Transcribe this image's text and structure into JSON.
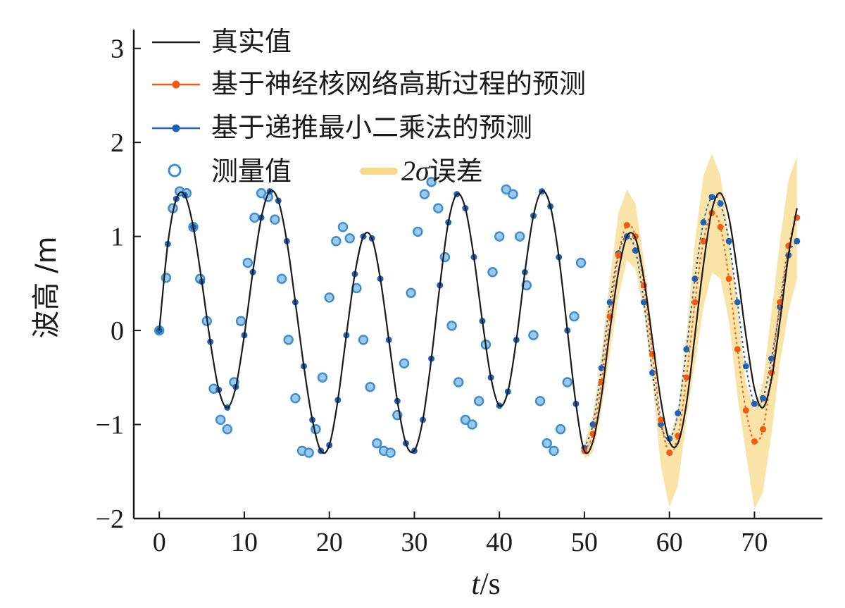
{
  "chart_data": {
    "type": "line",
    "xlabel_italic": "t",
    "xlabel_unit": "/s",
    "ylabel": "波高 /m",
    "xlim": [
      -3,
      78
    ],
    "ylim": [
      -2,
      3.2
    ],
    "xticks": [
      0,
      10,
      20,
      30,
      40,
      50,
      60,
      70
    ],
    "yticks": [
      -2,
      -1,
      0,
      1,
      2,
      3
    ],
    "legend_position": "top-left",
    "grid": false,
    "colors": {
      "true": "#1a1a1a",
      "gp": "#f05a14",
      "rls": "#1f62b4",
      "measured": "#3f8fcf",
      "band": "#f8d98a"
    },
    "legend": {
      "true": "真实值",
      "gp": "基于神经核网络高斯过程的预测",
      "rls": "基于递推最小二乘法的预测",
      "measured": "测量值",
      "band_sigma": "2σ",
      "band_text": "误差"
    },
    "series": [
      {
        "name": "真实值",
        "x": [
          0,
          1,
          2,
          3,
          4,
          5,
          6,
          7,
          8,
          9,
          10,
          11,
          12,
          13,
          14,
          15,
          16,
          17,
          18,
          19,
          20,
          21,
          22,
          23,
          24,
          25,
          26,
          27,
          28,
          29,
          30,
          31,
          32,
          33,
          34,
          35,
          36,
          37,
          38,
          39,
          40,
          41,
          42,
          43,
          44,
          45,
          46,
          47,
          48,
          49,
          50,
          51,
          52,
          53,
          54,
          55,
          56,
          57,
          58,
          59,
          60,
          61,
          62,
          63,
          64,
          65,
          66,
          67,
          68,
          69,
          70,
          71,
          72,
          73,
          74,
          75
        ],
        "y": [
          0,
          0.92,
          1.4,
          1.44,
          1.1,
          0.52,
          -0.12,
          -0.63,
          -0.82,
          -0.6,
          -0.05,
          0.62,
          1.2,
          1.48,
          1.38,
          0.95,
          0.3,
          -0.38,
          -0.95,
          -1.28,
          -1.22,
          -0.74,
          -0.05,
          0.6,
          1.0,
          0.98,
          0.55,
          -0.1,
          -0.75,
          -1.2,
          -1.28,
          -0.95,
          -0.3,
          0.48,
          1.15,
          1.45,
          1.3,
          0.78,
          0.1,
          -0.5,
          -0.8,
          -0.65,
          -0.1,
          0.62,
          1.22,
          1.48,
          1.32,
          0.78,
          0.0,
          -0.78,
          -1.28,
          -1.18,
          -0.7,
          0.0,
          0.62,
          1.0,
          0.98,
          0.55,
          -0.1,
          -0.75,
          -1.18,
          -1.2,
          -0.78,
          -0.05,
          0.7,
          1.28,
          1.46,
          1.2,
          0.62,
          -0.05,
          -0.62,
          -0.82,
          -0.52,
          0.1,
          0.8,
          1.3
        ]
      },
      {
        "name": "基于神经核网络高斯过程的预测",
        "x": [
          50,
          51,
          52,
          53,
          54,
          55,
          56,
          57,
          58,
          59,
          60,
          61,
          62,
          63,
          64,
          65,
          66,
          67,
          68,
          69,
          70,
          71,
          72,
          73,
          74,
          75
        ],
        "y": [
          -1.28,
          -1.1,
          -0.55,
          0.15,
          0.8,
          1.12,
          1.0,
          0.48,
          -0.25,
          -0.95,
          -1.3,
          -1.12,
          -0.5,
          0.3,
          0.95,
          1.25,
          1.1,
          0.55,
          -0.2,
          -0.85,
          -1.18,
          -1.05,
          -0.45,
          0.3,
          0.9,
          1.2
        ]
      },
      {
        "name": "基于递推最小二乘法的预测",
        "x": [
          50,
          51,
          52,
          53,
          54,
          55,
          56,
          57,
          58,
          59,
          60,
          61,
          62,
          63,
          64,
          65,
          66,
          67,
          68,
          69,
          70,
          71,
          72,
          73,
          74,
          75
        ],
        "y": [
          -1.25,
          -1.0,
          -0.4,
          0.3,
          0.82,
          1.0,
          0.85,
          0.3,
          -0.45,
          -1.0,
          -1.15,
          -0.88,
          -0.2,
          0.55,
          1.15,
          1.42,
          1.35,
          0.95,
          0.3,
          -0.38,
          -0.78,
          -0.72,
          -0.3,
          0.25,
          0.8,
          0.95
        ]
      },
      {
        "name": "测量值",
        "x": [
          0,
          0.8,
          1.6,
          2.4,
          3.2,
          4,
          4.8,
          5.6,
          6.4,
          7.2,
          8,
          8.8,
          9.6,
          10.4,
          11.2,
          12,
          12.8,
          13.6,
          14.4,
          15.2,
          16,
          16.8,
          17.6,
          18.4,
          19.2,
          20,
          20.8,
          21.6,
          22.4,
          23.2,
          24,
          24.8,
          25.6,
          26.4,
          27.2,
          28,
          28.8,
          29.6,
          30.4,
          31.2,
          32,
          32.8,
          33.6,
          34.4,
          35.2,
          36,
          36.8,
          37.6,
          38.4,
          39.2,
          40,
          40.8,
          41.6,
          42.4,
          43.2,
          44,
          44.8,
          45.6,
          46.4,
          47.2,
          48,
          48.8,
          49.6
        ],
        "y": [
          0.0,
          0.56,
          1.3,
          1.48,
          1.46,
          1.1,
          0.55,
          0.1,
          -0.62,
          -0.95,
          -1.05,
          -0.55,
          0.1,
          0.72,
          1.2,
          1.46,
          1.42,
          1.18,
          0.55,
          -0.1,
          -0.72,
          -1.28,
          -1.3,
          -1.05,
          -0.5,
          0.35,
          0.95,
          1.1,
          0.98,
          0.45,
          -0.1,
          -0.6,
          -1.2,
          -1.28,
          -1.3,
          -0.9,
          -0.35,
          0.4,
          1.05,
          1.45,
          1.58,
          1.3,
          0.78,
          0.05,
          -0.55,
          -0.95,
          -1.0,
          -0.75,
          -0.15,
          0.62,
          1.0,
          1.5,
          1.45,
          1.0,
          0.48,
          -0.05,
          -0.75,
          -1.2,
          -1.28,
          -1.05,
          -0.55,
          0.15,
          0.72
        ]
      }
    ],
    "band": {
      "name": "2σ误差",
      "x": [
        50,
        51,
        52,
        53,
        54,
        55,
        56,
        57,
        58,
        59,
        60,
        61,
        62,
        63,
        64,
        65,
        66,
        67,
        68,
        69,
        70,
        71,
        72,
        73,
        74,
        75
      ],
      "upper": [
        -1.2,
        -0.9,
        -0.25,
        0.55,
        1.25,
        1.5,
        1.35,
        0.75,
        -0.05,
        -0.95,
        -1.15,
        -0.85,
        -0.05,
        0.95,
        1.65,
        1.88,
        1.65,
        1.0,
        0.25,
        -0.55,
        -0.85,
        -0.55,
        0.2,
        0.95,
        1.6,
        1.85
      ],
      "lower": [
        -1.36,
        -1.3,
        -0.85,
        -0.25,
        0.35,
        0.75,
        0.65,
        0.2,
        -0.55,
        -1.45,
        -1.88,
        -1.65,
        -0.95,
        -0.35,
        0.25,
        0.62,
        0.55,
        0.1,
        -0.7,
        -1.3,
        -1.9,
        -1.72,
        -1.1,
        -0.35,
        0.2,
        0.55
      ]
    }
  }
}
